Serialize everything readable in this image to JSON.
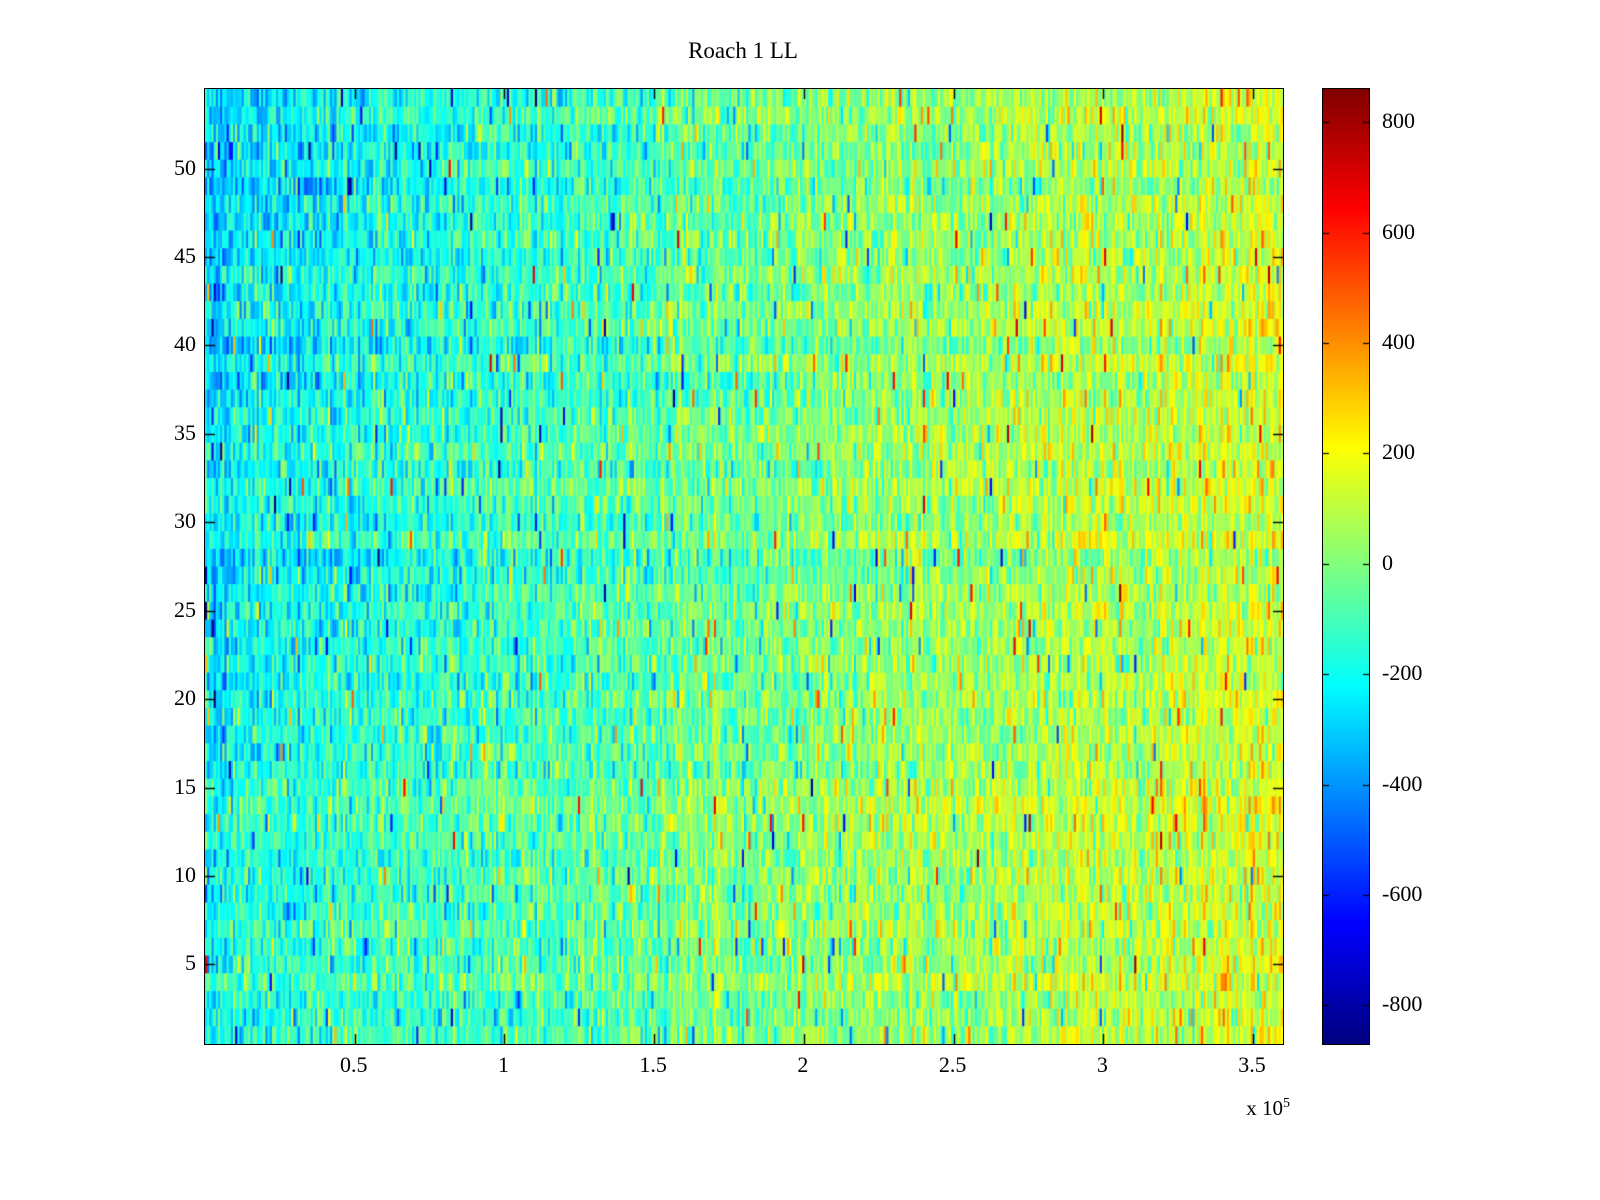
{
  "chart_data": {
    "type": "heatmap",
    "title": "Roach 1 LL",
    "xlabel": "",
    "ylabel": "",
    "xlim": [
      0,
      360000
    ],
    "ylim": [
      0.5,
      54.5
    ],
    "x_ticks": {
      "values": [
        50000,
        100000,
        150000,
        200000,
        250000,
        300000,
        350000
      ],
      "labels": [
        "0.5",
        "1",
        "1.5",
        "2",
        "2.5",
        "3",
        "3.5"
      ]
    },
    "x_scale": {
      "prefix": "x 10",
      "exponent": "5"
    },
    "y_ticks": {
      "values": [
        5,
        10,
        15,
        20,
        25,
        30,
        35,
        40,
        45,
        50
      ],
      "labels": [
        "5",
        "10",
        "15",
        "20",
        "25",
        "30",
        "35",
        "40",
        "45",
        "50"
      ]
    },
    "rows": 54,
    "cols": 500,
    "colormap": "jet",
    "clim": [
      -870,
      860
    ],
    "colorbar_ticks": {
      "values": [
        800,
        600,
        400,
        200,
        0,
        -200,
        -400,
        -600,
        -800
      ],
      "labels": [
        "800",
        "600",
        "400",
        "200",
        "0",
        "-200",
        "-400",
        "-600",
        "-800"
      ]
    },
    "value_model": {
      "description": "noisy multichannel recording; mean drifts from cyan (negative) at left to yellow-orange (positive) at right, extra negative (blue) patch in upper-left, sparse red/blue spikes",
      "left_mean": -170,
      "right_mean": 150,
      "top_left_extra": -110,
      "row_offset_std": 30,
      "col_offset_std": 35,
      "noise_std": 115,
      "spike_probability": 0.02,
      "spike_magnitude_min": 250,
      "spike_magnitude_max": 650,
      "seed": 20240515
    },
    "grid": false,
    "legend": null
  }
}
